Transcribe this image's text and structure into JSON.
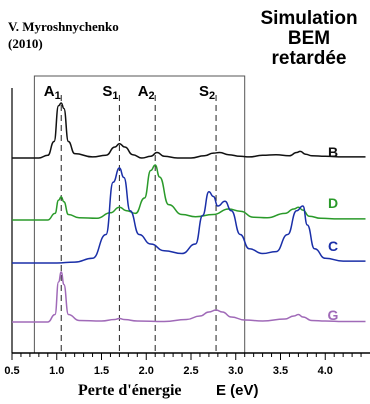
{
  "header": {
    "author_line1": "V. Myroshnychenko",
    "author_line2": "(2010)",
    "title_line1": "Simulation",
    "title_line2": "BEM",
    "title_line3": "retardée"
  },
  "chart_data": {
    "type": "line",
    "xlabel_part1": "Perte d'énergie",
    "xlabel_part2": "E (eV)",
    "xlim": [
      0.5,
      4.5
    ],
    "ticks": [
      0.5,
      1.0,
      1.5,
      2.0,
      2.5,
      3.0,
      3.5,
      4.0
    ],
    "tick_labels": [
      "0.5",
      "1.0",
      "1.5",
      "2.0",
      "2.5",
      "3.0",
      "3.5",
      "4.0"
    ],
    "peaks": [
      {
        "label": "A",
        "sub": "1",
        "x": 1.05
      },
      {
        "label": "S",
        "sub": "1",
        "x": 1.7
      },
      {
        "label": "A",
        "sub": "2",
        "x": 2.1
      },
      {
        "label": "S",
        "sub": "2",
        "x": 2.78
      }
    ],
    "highlight_box": [
      0.75,
      3.1
    ],
    "series": [
      {
        "name": "B",
        "color": "#111111",
        "x": [
          0.5,
          0.8,
          0.9,
          0.97,
          1.02,
          1.05,
          1.08,
          1.13,
          1.2,
          1.4,
          1.55,
          1.65,
          1.7,
          1.76,
          1.85,
          1.95,
          2.05,
          2.12,
          2.2,
          2.35,
          2.5,
          2.65,
          2.75,
          2.82,
          2.92,
          3.05,
          3.15,
          3.3,
          3.45,
          3.6,
          3.68,
          3.72,
          3.78,
          3.85,
          4.0,
          4.2,
          4.45
        ],
        "y": [
          0.0,
          0.0,
          0.05,
          0.3,
          0.95,
          1.0,
          0.9,
          0.3,
          0.08,
          0.02,
          0.05,
          0.2,
          0.26,
          0.2,
          0.06,
          0.0,
          0.03,
          0.1,
          0.03,
          0.0,
          0.0,
          0.04,
          0.09,
          0.1,
          0.06,
          0.03,
          0.02,
          0.05,
          0.06,
          0.04,
          0.1,
          0.12,
          0.07,
          0.04,
          0.03,
          0.02,
          0.02
        ]
      },
      {
        "name": "D",
        "color": "#2a9a2a",
        "x": [
          0.5,
          0.9,
          0.98,
          1.02,
          1.05,
          1.08,
          1.13,
          1.25,
          1.45,
          1.6,
          1.7,
          1.78,
          1.88,
          1.98,
          2.05,
          2.1,
          2.15,
          2.25,
          2.4,
          2.55,
          2.75,
          2.92,
          3.05,
          3.2,
          3.35,
          3.55,
          3.65,
          3.7,
          3.75,
          3.82,
          3.95,
          4.15,
          4.45
        ],
        "y": [
          0.0,
          0.0,
          0.12,
          0.36,
          0.42,
          0.33,
          0.1,
          0.04,
          0.03,
          0.13,
          0.23,
          0.17,
          0.12,
          0.4,
          0.9,
          1.0,
          0.78,
          0.28,
          0.1,
          0.06,
          0.1,
          0.2,
          0.16,
          0.05,
          0.04,
          0.12,
          0.2,
          0.23,
          0.18,
          0.07,
          0.03,
          0.02,
          0.02
        ]
      },
      {
        "name": "C",
        "color": "#1a2fa8",
        "x": [
          0.5,
          1.0,
          1.2,
          1.4,
          1.55,
          1.63,
          1.7,
          1.75,
          1.82,
          1.92,
          2.05,
          2.2,
          2.4,
          2.55,
          2.63,
          2.7,
          2.75,
          2.8,
          2.88,
          2.95,
          3.05,
          3.15,
          3.3,
          3.45,
          3.58,
          3.68,
          3.75,
          3.8,
          3.88,
          4.0,
          4.2,
          4.45
        ],
        "y": [
          0.0,
          0.0,
          0.01,
          0.05,
          0.3,
          0.85,
          1.0,
          0.9,
          0.55,
          0.3,
          0.2,
          0.13,
          0.1,
          0.2,
          0.5,
          0.75,
          0.7,
          0.6,
          0.65,
          0.55,
          0.3,
          0.15,
          0.1,
          0.12,
          0.3,
          0.55,
          0.6,
          0.4,
          0.15,
          0.05,
          0.02,
          0.02
        ]
      },
      {
        "name": "G",
        "color": "#a06ab8",
        "x": [
          0.5,
          0.9,
          0.98,
          1.02,
          1.05,
          1.08,
          1.13,
          1.25,
          1.5,
          1.65,
          1.7,
          1.75,
          1.9,
          2.2,
          2.45,
          2.6,
          2.7,
          2.78,
          2.85,
          2.95,
          3.1,
          3.3,
          3.55,
          3.65,
          3.7,
          3.75,
          3.85,
          4.0,
          4.2,
          4.45
        ],
        "y": [
          0.0,
          0.0,
          0.15,
          0.8,
          1.0,
          0.75,
          0.15,
          0.03,
          0.02,
          0.05,
          0.07,
          0.05,
          0.02,
          0.01,
          0.05,
          0.12,
          0.2,
          0.24,
          0.2,
          0.1,
          0.04,
          0.02,
          0.06,
          0.12,
          0.15,
          0.1,
          0.03,
          0.02,
          0.01,
          0.01
        ]
      }
    ]
  }
}
